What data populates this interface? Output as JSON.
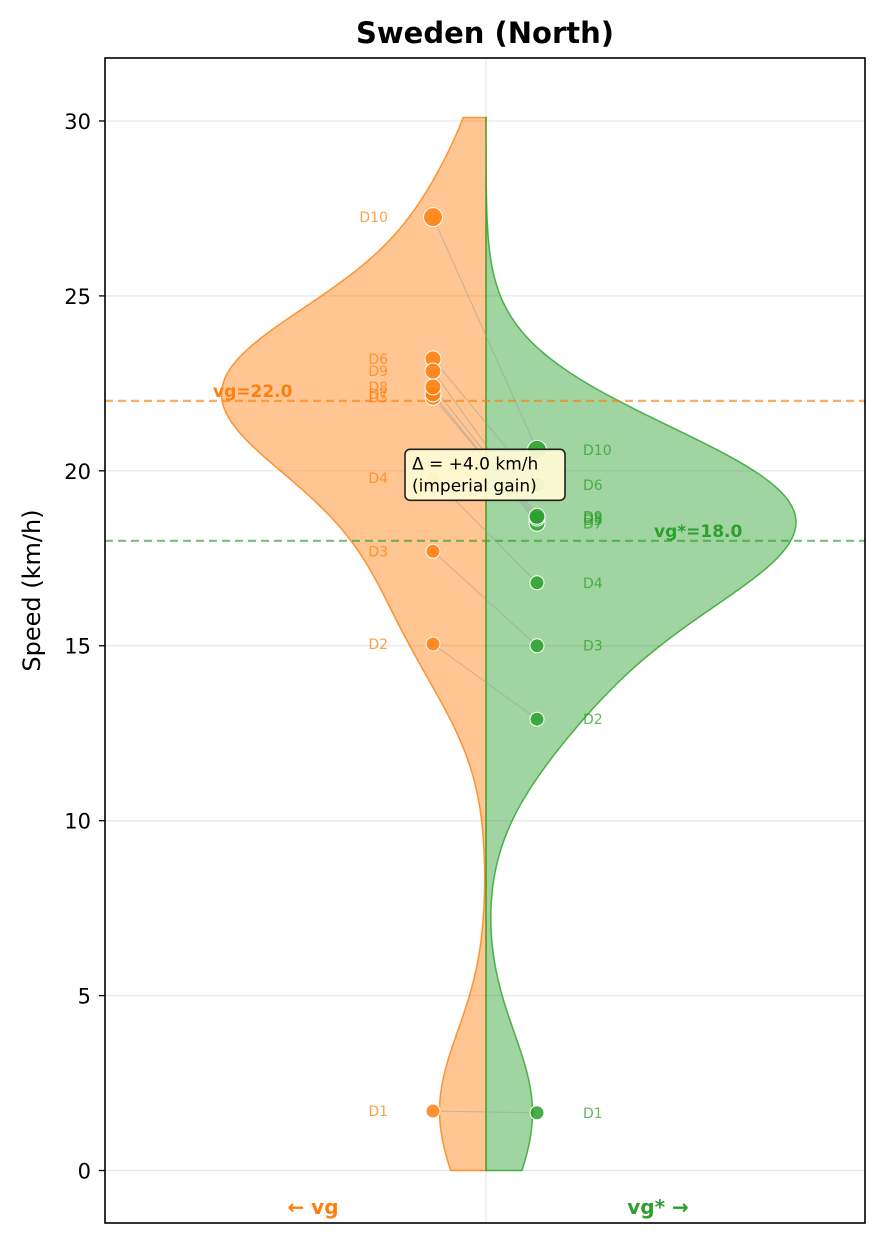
{
  "chart_data": {
    "type": "violin",
    "title": "Sweden (North)",
    "ylabel": "Speed (km/h)",
    "xlabel": "",
    "ylim": [
      -1.5,
      31.8
    ],
    "yticks": [
      0,
      5,
      10,
      15,
      20,
      25,
      30
    ],
    "grid": "horizontal",
    "series": [
      {
        "name": "vg",
        "side": "left",
        "side_label": "← vg",
        "color": "#ff7f0e",
        "points": [
          {
            "label": "D1",
            "value": 1.7
          },
          {
            "label": "D2",
            "value": 15.05
          },
          {
            "label": "D3",
            "value": 17.7
          },
          {
            "label": "D4",
            "value": 19.8
          },
          {
            "label": "D5",
            "value": 22.1
          },
          {
            "label": "D6",
            "value": 23.2
          },
          {
            "label": "D7",
            "value": 22.2
          },
          {
            "label": "D8",
            "value": 22.4
          },
          {
            "label": "D9",
            "value": 22.85
          },
          {
            "label": "D10",
            "value": 27.25
          }
        ],
        "reference": {
          "value": 22.0,
          "label": "vg=22.0"
        }
      },
      {
        "name": "vg*",
        "side": "right",
        "side_label": "vg* →",
        "color": "#2ca02c",
        "points": [
          {
            "label": "D1",
            "value": 1.65
          },
          {
            "label": "D2",
            "value": 12.9
          },
          {
            "label": "D3",
            "value": 15.0
          },
          {
            "label": "D4",
            "value": 16.8
          },
          {
            "label": "D5",
            "value": 18.6
          },
          {
            "label": "D6",
            "value": 19.6
          },
          {
            "label": "D7",
            "value": 18.5
          },
          {
            "label": "D8",
            "value": 18.65
          },
          {
            "label": "D9",
            "value": 18.7
          },
          {
            "label": "D10",
            "value": 20.6
          }
        ],
        "reference": {
          "value": 18.0,
          "label": "vg*=18.0"
        }
      }
    ],
    "annotation": {
      "line1": "Δ = +4.0 km/h",
      "line2": "(imperial gain)",
      "at_value": 19.9
    }
  }
}
